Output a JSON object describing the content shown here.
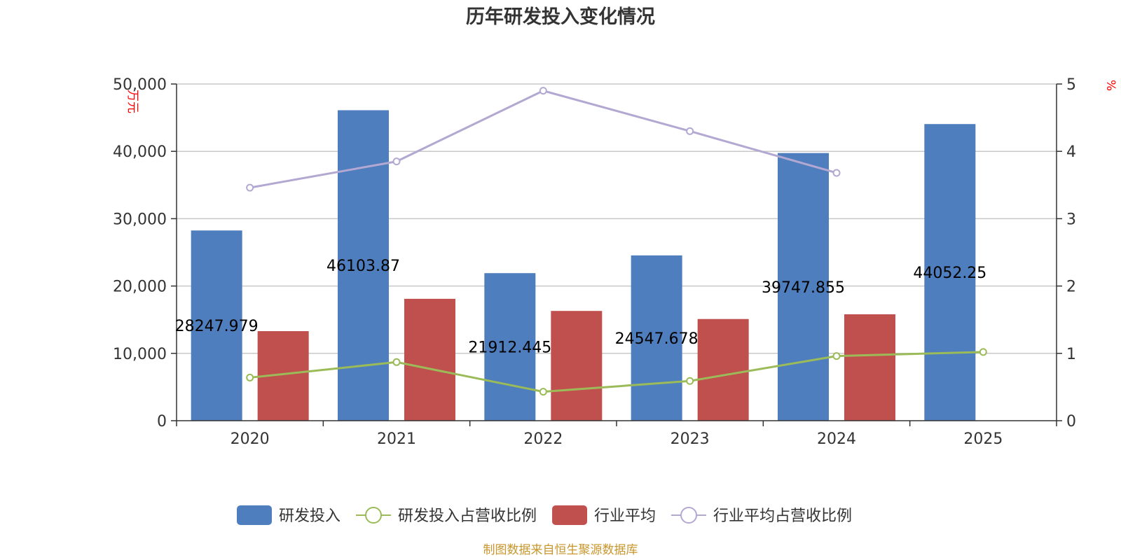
{
  "chart_data": {
    "type": "bar",
    "title": "历年研发投入变化情况",
    "categories": [
      "2020",
      "2021",
      "2022",
      "2023",
      "2024",
      "2025"
    ],
    "y_left": {
      "unit_label": "万元",
      "range": [
        0,
        50000
      ],
      "ticks": [
        "0",
        "10,000",
        "20,000",
        "30,000",
        "40,000",
        "50,000"
      ]
    },
    "y_right": {
      "unit_label": "%",
      "range": [
        0,
        5
      ],
      "ticks": [
        "0",
        "1",
        "2",
        "3",
        "4",
        "5"
      ]
    },
    "grid": true,
    "legend_position": "bottom",
    "series": [
      {
        "name": "研发投入",
        "type": "bar",
        "axis": "left",
        "color": "#4e7ebd",
        "values": [
          28247.979,
          46103.87,
          21912.445,
          24547.678,
          39747.855,
          44052.25
        ],
        "labels": [
          "28247.979",
          "46103.87",
          "21912.445",
          "24547.678",
          "39747.855",
          "44052.25"
        ]
      },
      {
        "name": "研发投入占营收比例",
        "type": "line",
        "axis": "right",
        "color": "#9bbb59",
        "values": [
          0.64,
          0.87,
          0.43,
          0.59,
          0.96,
          1.02
        ]
      },
      {
        "name": "行业平均",
        "type": "bar",
        "axis": "left",
        "color": "#c0504d",
        "values": [
          13300,
          18100,
          16300,
          15100,
          15800,
          null
        ]
      },
      {
        "name": "行业平均占营收比例",
        "type": "line",
        "axis": "right",
        "color": "#b3a8d1",
        "values": [
          3.46,
          3.85,
          4.9,
          4.3,
          3.68,
          null
        ]
      }
    ]
  },
  "source_text": "制图数据来自恒生聚源数据库"
}
